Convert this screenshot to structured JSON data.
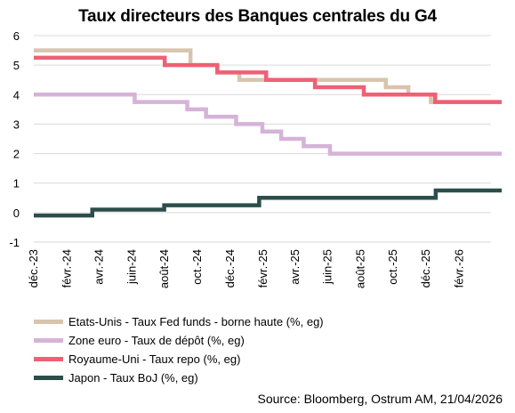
{
  "chart_data": {
    "type": "line",
    "title": "Taux directeurs des Banques centrales du G4",
    "source": "Source: Bloomberg,  Ostrum AM, 21/04/2026",
    "ylim": [
      -1,
      6
    ],
    "yticks": [
      -1,
      0,
      1,
      2,
      3,
      4,
      5,
      6
    ],
    "ytick_labels": [
      "-1",
      "0",
      "1",
      "2",
      "3",
      "4",
      "5",
      "6"
    ],
    "x_start": "2023-12",
    "x_end": "2026-04",
    "xticks": [
      "2023-12",
      "2024-02",
      "2024-04",
      "2024-06",
      "2024-08",
      "2024-10",
      "2024-12",
      "2025-02",
      "2025-04",
      "2025-06",
      "2025-08",
      "2025-10",
      "2025-12",
      "2026-02"
    ],
    "xtick_labels": [
      "déc.-23",
      "févr.-24",
      "avr.-24",
      "juin-24",
      "août-24",
      "oct.-24",
      "déc.-24",
      "févr.-25",
      "avr.-25",
      "juin-25",
      "août-25",
      "oct.-25",
      "déc.-25",
      "févr.-26"
    ],
    "grid": "horizontal",
    "series": [
      {
        "name": "Etats-Unis - Taux Fed funds - borne haute  (%, eg)",
        "color": "#d8c4ae",
        "x": [
          "2023-12",
          "2024-09-18",
          "2024-11-07",
          "2024-12-18",
          "2025-09-17",
          "2025-10-29",
          "2025-12-10",
          "2026-04-21"
        ],
        "y": [
          5.5,
          5.0,
          4.75,
          4.5,
          4.25,
          4.0,
          3.75,
          3.75
        ]
      },
      {
        "name": "Zone euro - Taux de dépôt  (%, eg)",
        "color": "#d5b3d8",
        "x": [
          "2023-12",
          "2024-06-06",
          "2024-09-12",
          "2024-10-17",
          "2024-12-12",
          "2025-01-30",
          "2025-03-06",
          "2025-04-17",
          "2025-06-05",
          "2026-04-21"
        ],
        "y": [
          4.0,
          3.75,
          3.5,
          3.25,
          3.0,
          2.75,
          2.5,
          2.25,
          2.0,
          2.0
        ]
      },
      {
        "name": "Royaume-Uni - Taux repo  (%, eg)",
        "color": "#ef6075",
        "x": [
          "2023-12",
          "2024-08-01",
          "2024-11-07",
          "2025-02-06",
          "2025-05-08",
          "2025-08-07",
          "2025-12-18",
          "2026-04-21"
        ],
        "y": [
          5.25,
          5.0,
          4.75,
          4.5,
          4.25,
          4.0,
          3.75,
          3.75
        ]
      },
      {
        "name": "Japon - Taux BoJ  (%, eg)",
        "color": "#2c4e4a",
        "x": [
          "2023-12",
          "2024-03-19",
          "2024-07-31",
          "2025-01-24",
          "2025-12-19",
          "2026-04-21"
        ],
        "y": [
          -0.1,
          0.1,
          0.25,
          0.5,
          0.75,
          0.75
        ]
      }
    ]
  }
}
